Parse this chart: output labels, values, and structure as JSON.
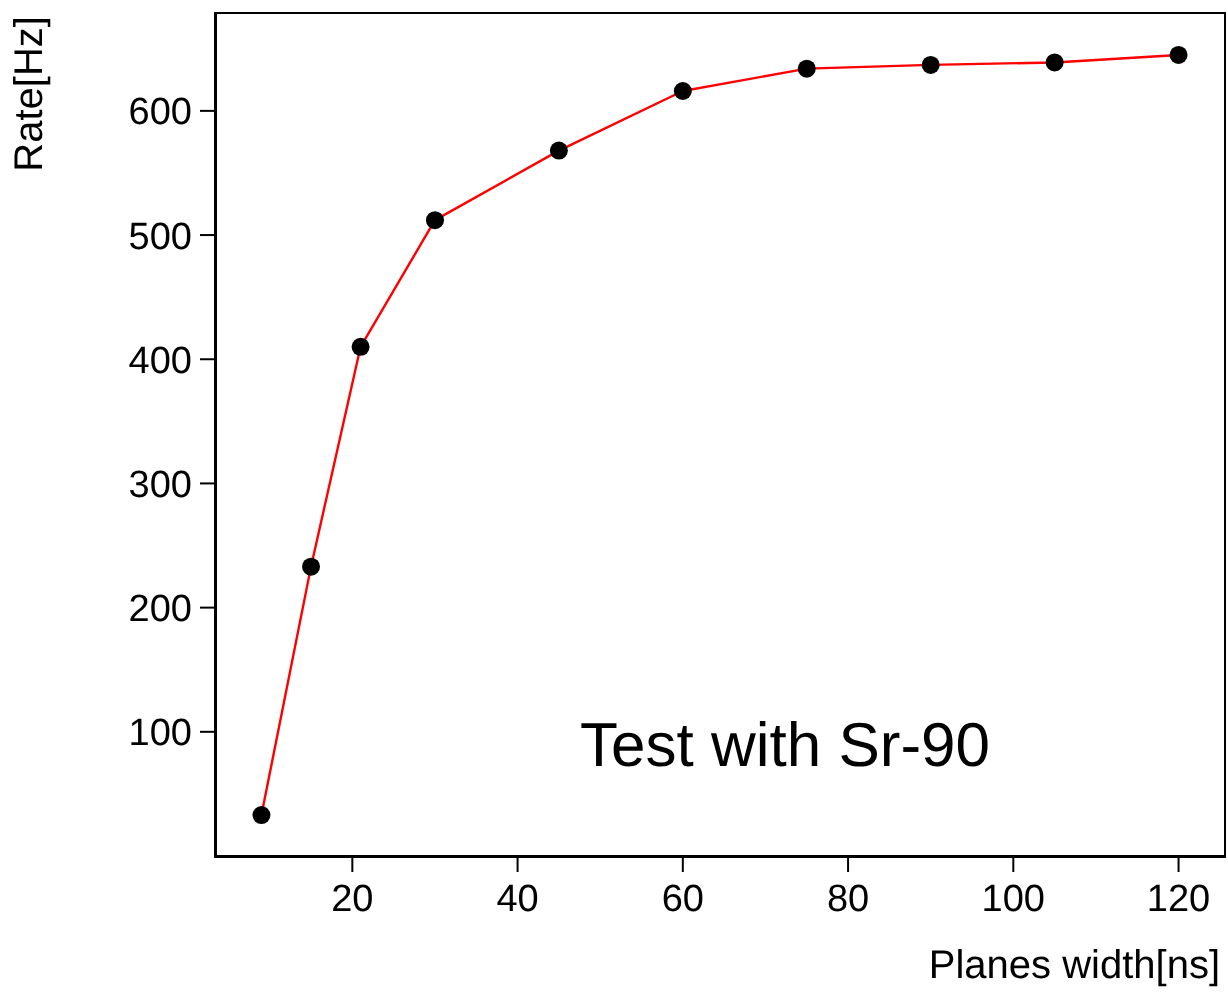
{
  "chart_data": {
    "type": "line",
    "xlabel": "Planes width[ns]",
    "ylabel": "Rate[Hz]",
    "x": [
      9,
      15,
      21,
      30,
      45,
      60,
      75,
      90,
      105,
      120
    ],
    "series": [
      {
        "color": "#ff0000",
        "values": [
          33,
          233,
          410,
          512,
          568,
          616,
          634,
          637,
          639,
          645
        ]
      }
    ],
    "marker": "circle",
    "xlim": [
      3.5,
      125.5
    ],
    "xticks": [
      20,
      40,
      60,
      80,
      100,
      120
    ],
    "ylim": [
      0,
      678
    ],
    "yticks": [
      100,
      200,
      300,
      400,
      500,
      600
    ],
    "annotations": [
      "Test with Sr-90"
    ]
  }
}
